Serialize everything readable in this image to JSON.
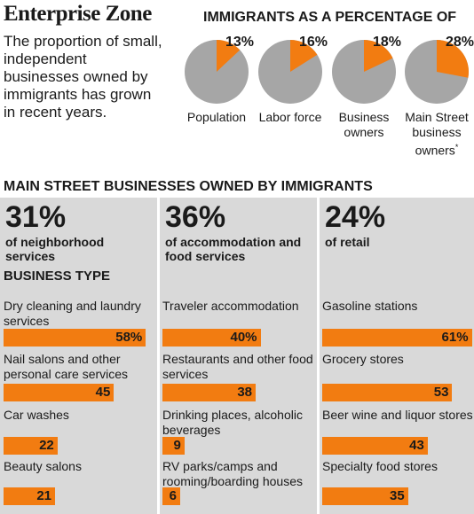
{
  "header": {
    "title": "Enterprise Zone",
    "intro": "The proportion of small, independent businesses owned by immigrants has grown in recent years."
  },
  "pies": {
    "title": "IMMIGRANTS AS A PERCENTAGE OF",
    "items": [
      {
        "pct_label": "13%",
        "label": "Population"
      },
      {
        "pct_label": "16%",
        "label": "Labor force"
      },
      {
        "pct_label": "18%",
        "label": "Business owners"
      },
      {
        "pct_label": "28%",
        "label": "Main Street business owners",
        "note": "*"
      }
    ]
  },
  "section": {
    "title": "MAIN STREET BUSINESSES OWNED BY IMMIGRANTS",
    "business_type_label": "BUSINESS TYPE"
  },
  "columns": [
    {
      "big": "31%",
      "sub": "of neighborhood services"
    },
    {
      "big": "36%",
      "sub": "of accommodation and food services"
    },
    {
      "big": "24%",
      "sub": "of retail"
    }
  ],
  "colors": {
    "accent": "#f27c11",
    "pie_base": "#a6a6a6",
    "panel": "#d9d9d9"
  },
  "chart_data": [
    {
      "type": "pie",
      "title": "IMMIGRANTS AS A PERCENTAGE OF",
      "categories": [
        "Population",
        "Labor force",
        "Business owners",
        "Main Street business owners*"
      ],
      "values": [
        13,
        16,
        18,
        28
      ]
    },
    {
      "type": "bar",
      "title": "of neighborhood services",
      "categories": [
        "Dry cleaning and laundry services",
        "Nail salons and other personal care services",
        "Car washes",
        "Beauty salons"
      ],
      "values": [
        58,
        45,
        22,
        21
      ],
      "value_labels": [
        "58%",
        "45",
        "22",
        "21"
      ]
    },
    {
      "type": "bar",
      "title": "of accommodation and food services",
      "categories": [
        "Traveler accommodation",
        "Restaurants and other food services",
        "Drinking places, alcoholic beverages",
        "RV parks/camps and rooming/boarding houses"
      ],
      "values": [
        40,
        38,
        9,
        6
      ],
      "value_labels": [
        "40%",
        "38",
        "9",
        "6"
      ]
    },
    {
      "type": "bar",
      "title": "of retail",
      "categories": [
        "Gasoline stations",
        "Grocery stores",
        "Beer wine and liquor stores",
        "Specialty food stores"
      ],
      "values": [
        61,
        53,
        43,
        35
      ],
      "value_labels": [
        "61%",
        "53",
        "43",
        "35"
      ]
    }
  ]
}
